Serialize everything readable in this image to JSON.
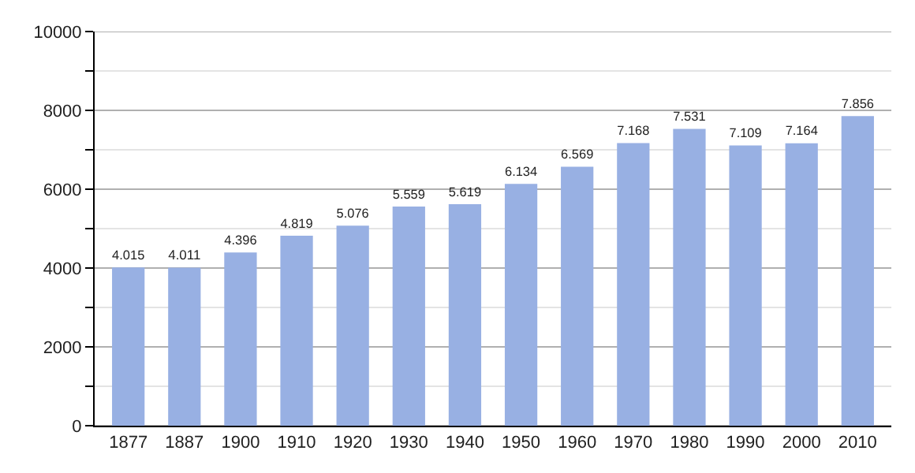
{
  "chart_data": {
    "type": "bar",
    "categories": [
      "1877",
      "1887",
      "1900",
      "1910",
      "1920",
      "1930",
      "1940",
      "1950",
      "1960",
      "1970",
      "1980",
      "1990",
      "2000",
      "2010"
    ],
    "values": [
      4015,
      4011,
      4396,
      4819,
      5076,
      5559,
      5619,
      6134,
      6569,
      7168,
      7531,
      7109,
      7164,
      7856
    ],
    "value_labels": [
      "4.015",
      "4.011",
      "4.396",
      "4.819",
      "5.076",
      "5.559",
      "5.619",
      "6.134",
      "6.569",
      "7.168",
      "7.531",
      "7.109",
      "7.164",
      "7.856"
    ],
    "color": "#98b0e3",
    "ylim": [
      0,
      10000
    ],
    "yticks": [
      0,
      {
        "value": 1000,
        "label": null
      },
      2000,
      {
        "value": 3000,
        "label": null
      },
      4000,
      {
        "value": 5000,
        "label": null
      },
      6000,
      {
        "value": 7000,
        "label": null
      },
      8000,
      {
        "value": 9000,
        "label": null
      },
      10000
    ],
    "grid": true,
    "legend": false
  }
}
